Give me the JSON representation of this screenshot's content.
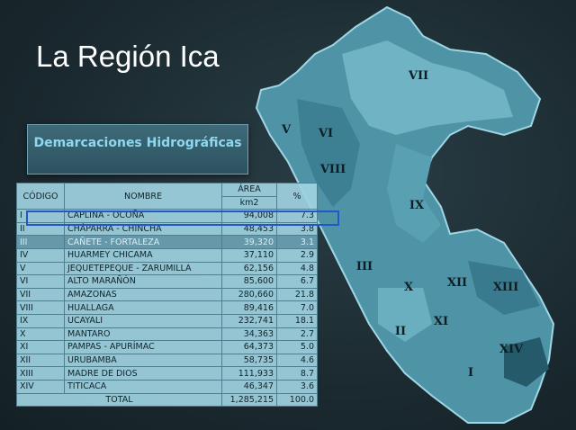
{
  "title": "La Región Ica",
  "subtitle": "Demarcaciones Hidrográficas",
  "table": {
    "header": {
      "code": "CÓDIGO",
      "name": "NOMBRE",
      "area": "ÁREA",
      "area_unit": "km2",
      "percent": "%"
    },
    "rows": [
      [
        "I",
        "CAPLINA - OCOÑA",
        "94,008",
        "7.3"
      ],
      [
        "II",
        "CHÁPARRA - CHINCHA",
        "48,453",
        "3.8"
      ],
      [
        "III",
        "CAÑETE - FORTALEZA",
        "39,320",
        "3.1"
      ],
      [
        "IV",
        "HUARMEY CHICAMA",
        "37,110",
        "2.9"
      ],
      [
        "V",
        "JEQUETEPEQUE - ZARUMILLA",
        "62,156",
        "4.8"
      ],
      [
        "VI",
        "ALTO MARAÑÓN",
        "85,600",
        "6.7"
      ],
      [
        "VII",
        "AMAZONAS",
        "280,660",
        "21.8"
      ],
      [
        "VIII",
        "HUALLAGA",
        "89,416",
        "7.0"
      ],
      [
        "IX",
        "UCAYALI",
        "232,741",
        "18.1"
      ],
      [
        "X",
        "MANTARO",
        "34,363",
        "2.7"
      ],
      [
        "XI",
        "PAMPAS - APURÍMAC",
        "64,373",
        "5.0"
      ],
      [
        "XII",
        "URUBAMBA",
        "58,735",
        "4.6"
      ],
      [
        "XIII",
        "MADRE DE DIOS",
        "111,933",
        "8.7"
      ],
      [
        "XIV",
        "TITICACA",
        "46,347",
        "3.6"
      ]
    ],
    "total": {
      "label": "TOTAL",
      "area": "1,285,215",
      "percent": "100.0"
    }
  },
  "map_labels": [
    "VII",
    "V",
    "VI",
    "VIII",
    "IX",
    "III",
    "X",
    "XII",
    "XIII",
    "XI",
    "II",
    "XIV",
    "I"
  ]
}
